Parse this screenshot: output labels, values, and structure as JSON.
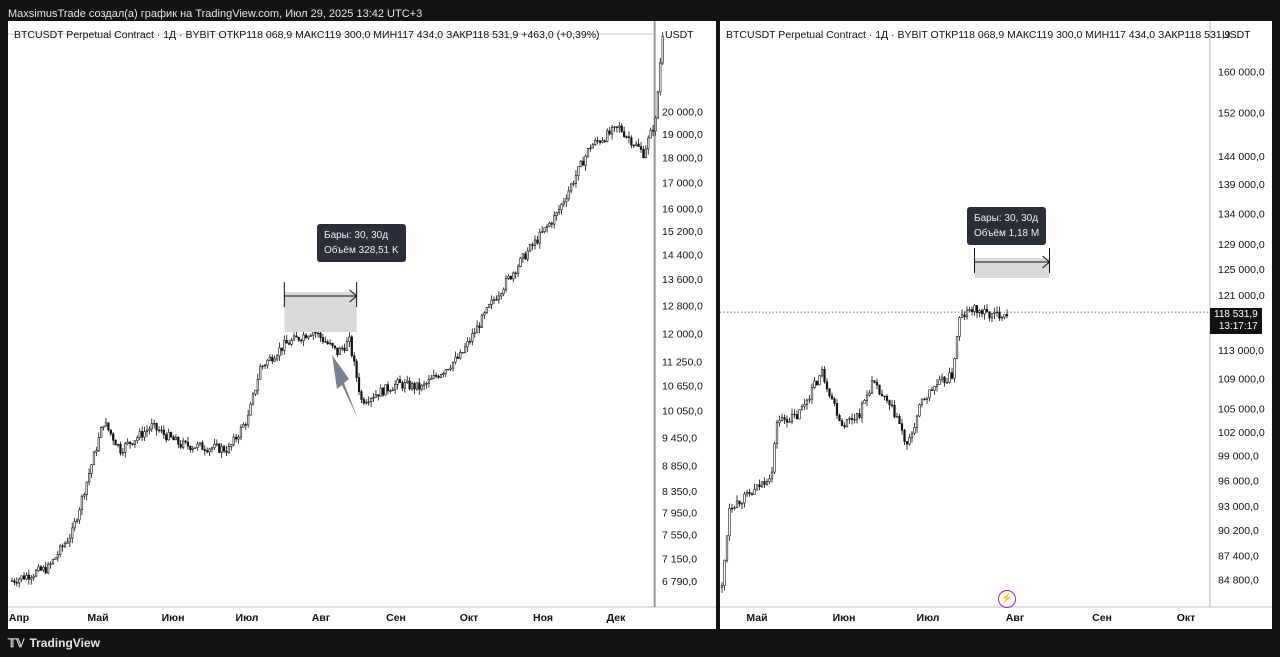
{
  "header": {
    "title": "MaxsimusTrade создал(а) график на TradingView.com, Июл 29, 2025 13:42 UTC+3"
  },
  "footer": {
    "brand": "TradingView"
  },
  "colors": {
    "background": "#131313",
    "panel": "#ffffff",
    "candle": "#111111",
    "tooltip": "#2a2e39",
    "measure_fill": "#d9d9d9",
    "arrow": "#7a8090",
    "bolt": "#9c27b0"
  },
  "left": {
    "legend": "BTCUSDT Perpetual Contract · 1Д · BYBIT  ОТКР118 068,9  МАКС119 300,0  МИН117 434,0  ЗАКР118 531,9  +463,0 (+0,39%)",
    "currency": "USDT",
    "tooltip_bars": "Бары: 30, 30д",
    "tooltip_volume": "Объём 328,51 K"
  },
  "right": {
    "legend": "BTCUSDT Perpetual Contract · 1Д · BYBIT  ОТКР118 068,9  МАКС119 300,0  МИН117 434,0  ЗАКР118 531,9...",
    "currency": "USDT",
    "tooltip_bars": "Бары: 30, 30д",
    "tooltip_volume": "Объём 1,18 M",
    "last_price": "118 531,9",
    "countdown": "13:17:17",
    "bolt_icon": "lightning-icon"
  },
  "chart_data": [
    {
      "type": "candlestick",
      "title": "BTCUSDT Perpetual Contract · 1Д · BYBIT",
      "scale": "log",
      "ylim": [
        6400,
        24000
      ],
      "y_ticks": [
        {
          "value": 20000,
          "label": "20 000,0"
        },
        {
          "value": 19000,
          "label": "19 000,0"
        },
        {
          "value": 18000,
          "label": "18 000,0"
        },
        {
          "value": 17000,
          "label": "17 000,0"
        },
        {
          "value": 16000,
          "label": "16 000,0"
        },
        {
          "value": 15200,
          "label": "15 200,0"
        },
        {
          "value": 14400,
          "label": "14 400,0"
        },
        {
          "value": 13600,
          "label": "13 600,0"
        },
        {
          "value": 12800,
          "label": "12 800,0"
        },
        {
          "value": 12000,
          "label": "12 000,0"
        },
        {
          "value": 11250,
          "label": "11 250,0"
        },
        {
          "value": 10650,
          "label": "10 650,0"
        },
        {
          "value": 10050,
          "label": "10 050,0"
        },
        {
          "value": 9450,
          "label": "9 450,0"
        },
        {
          "value": 8850,
          "label": "8 850,0"
        },
        {
          "value": 8350,
          "label": "8 350,0"
        },
        {
          "value": 7950,
          "label": "7 950,0"
        },
        {
          "value": 7550,
          "label": "7 550,0"
        },
        {
          "value": 7150,
          "label": "7 150,0"
        },
        {
          "value": 6790,
          "label": "6 790,0"
        }
      ],
      "x_labels": [
        "Апр",
        "Май",
        "Июн",
        "Июл",
        "Авг",
        "Сен",
        "Окт",
        "Ноя",
        "Дек"
      ],
      "key_points": [
        {
          "day": 0,
          "price": 6800
        },
        {
          "day": 15,
          "price": 7000
        },
        {
          "day": 25,
          "price": 7600
        },
        {
          "day": 38,
          "price": 9800
        },
        {
          "day": 45,
          "price": 9200
        },
        {
          "day": 58,
          "price": 9700
        },
        {
          "day": 70,
          "price": 9300
        },
        {
          "day": 90,
          "price": 9200
        },
        {
          "day": 98,
          "price": 9900
        },
        {
          "day": 103,
          "price": 11100
        },
        {
          "day": 113,
          "price": 11700
        },
        {
          "day": 125,
          "price": 12100
        },
        {
          "day": 135,
          "price": 11500
        },
        {
          "day": 140,
          "price": 11800
        },
        {
          "day": 145,
          "price": 10300
        },
        {
          "day": 160,
          "price": 10700
        },
        {
          "day": 170,
          "price": 10600
        },
        {
          "day": 186,
          "price": 11400
        },
        {
          "day": 200,
          "price": 13000
        },
        {
          "day": 213,
          "price": 14400
        },
        {
          "day": 226,
          "price": 15800
        },
        {
          "day": 240,
          "price": 18500
        },
        {
          "day": 252,
          "price": 19300
        },
        {
          "day": 262,
          "price": 18200
        },
        {
          "day": 267,
          "price": 19600
        },
        {
          "day": 270,
          "price": 24000
        }
      ],
      "measure": {
        "bars": 30,
        "from_day": 113,
        "to_day": 143
      }
    },
    {
      "type": "candlestick",
      "title": "BTCUSDT Perpetual Contract · 1Д · BYBIT",
      "scale": "log",
      "ylim": [
        82000,
        168000
      ],
      "y_ticks": [
        {
          "value": 160000,
          "label": "160 000,0"
        },
        {
          "value": 152000,
          "label": "152 000,0"
        },
        {
          "value": 144000,
          "label": "144 000,0"
        },
        {
          "value": 139000,
          "label": "139 000,0"
        },
        {
          "value": 134000,
          "label": "134 000,0"
        },
        {
          "value": 129000,
          "label": "129 000,0"
        },
        {
          "value": 125000,
          "label": "125 000,0"
        },
        {
          "value": 121000,
          "label": "121 000,0"
        },
        {
          "value": 113000,
          "label": "113 000,0"
        },
        {
          "value": 109000,
          "label": "109 000,0"
        },
        {
          "value": 105000,
          "label": "105 000,0"
        },
        {
          "value": 102000,
          "label": "102 000,0"
        },
        {
          "value": 99000,
          "label": "99 000,0"
        },
        {
          "value": 96000,
          "label": "96 000,0"
        },
        {
          "value": 93000,
          "label": "93 000,0"
        },
        {
          "value": 90200,
          "label": "90 200,0"
        },
        {
          "value": 87400,
          "label": "87 400,0"
        },
        {
          "value": 84800,
          "label": "84 800,0"
        }
      ],
      "x_labels": [
        "Май",
        "Июн",
        "Июл",
        "Авг",
        "Сен",
        "Окт"
      ],
      "last_price": 118531.9,
      "key_points": [
        {
          "day": 0,
          "price": 84000
        },
        {
          "day": 3,
          "price": 93000
        },
        {
          "day": 12,
          "price": 94500
        },
        {
          "day": 20,
          "price": 97000
        },
        {
          "day": 22,
          "price": 103500
        },
        {
          "day": 30,
          "price": 104000
        },
        {
          "day": 40,
          "price": 110000
        },
        {
          "day": 48,
          "price": 103000
        },
        {
          "day": 55,
          "price": 104500
        },
        {
          "day": 60,
          "price": 108500
        },
        {
          "day": 70,
          "price": 104000
        },
        {
          "day": 74,
          "price": 100000
        },
        {
          "day": 80,
          "price": 106000
        },
        {
          "day": 85,
          "price": 108000
        },
        {
          "day": 92,
          "price": 109500
        },
        {
          "day": 95,
          "price": 117500
        },
        {
          "day": 100,
          "price": 119000
        },
        {
          "day": 108,
          "price": 118000
        },
        {
          "day": 114,
          "price": 118531.9
        }
      ],
      "measure": {
        "bars": 30,
        "from_day": 101,
        "to_day": 131
      }
    }
  ]
}
